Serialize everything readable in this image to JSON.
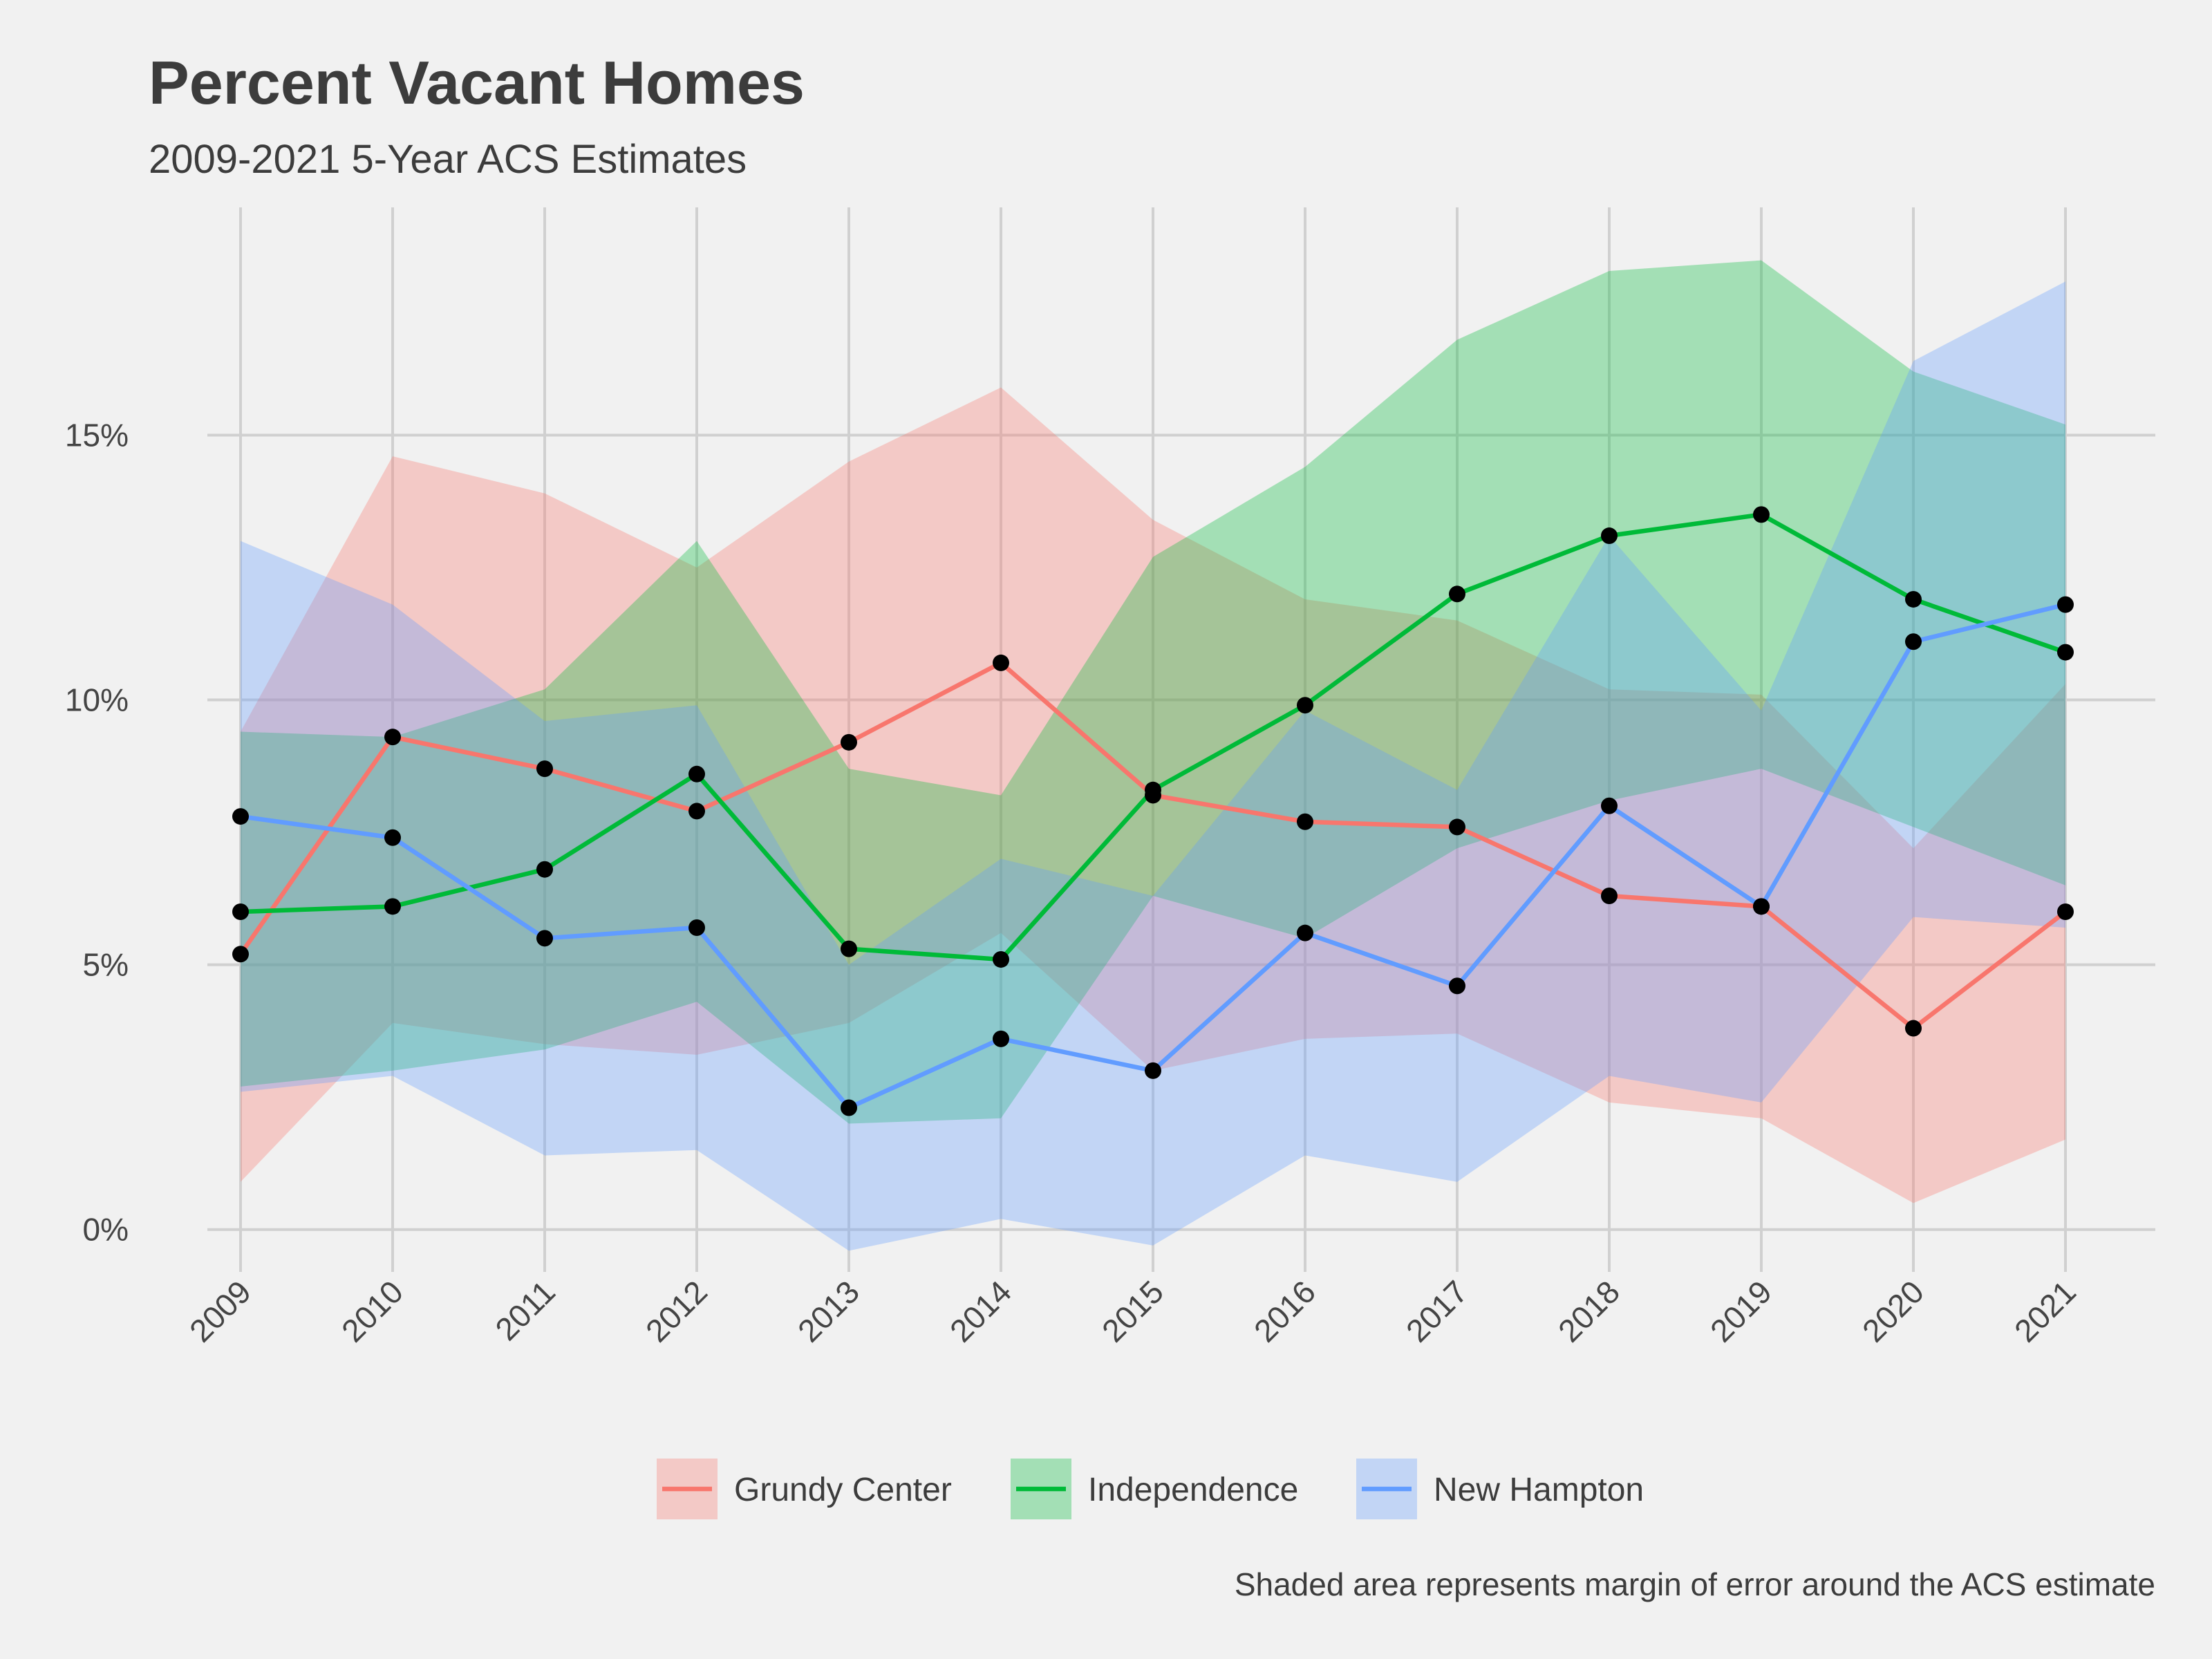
{
  "chart_data": {
    "type": "line",
    "title": "Percent Vacant Homes",
    "subtitle": "2009-2021 5-Year ACS Estimates",
    "caption": "Shaded area represents margin of error around the ACS estimate",
    "xlabel": "",
    "ylabel": "",
    "x": [
      2009,
      2010,
      2011,
      2012,
      2013,
      2014,
      2015,
      2016,
      2017,
      2018,
      2019,
      2020,
      2021
    ],
    "x_tick_labels": [
      "2009",
      "2010",
      "2011",
      "2012",
      "2013",
      "2014",
      "2015",
      "2016",
      "2017",
      "2018",
      "2019",
      "2020",
      "2021"
    ],
    "y_ticks": [
      0,
      5,
      10,
      15
    ],
    "y_tick_labels": [
      "0%",
      "5%",
      "10%",
      "15%"
    ],
    "ylim": [
      -0.8,
      19.3
    ],
    "grid": true,
    "legend_position": "bottom",
    "series": [
      {
        "name": "Grundy Center",
        "color": "#f8766d",
        "fill": "#f8766d",
        "values": [
          5.2,
          9.3,
          8.7,
          7.9,
          9.2,
          10.7,
          8.2,
          7.7,
          7.6,
          6.3,
          6.1,
          3.8,
          6.0
        ],
        "lower": [
          0.9,
          3.9,
          3.5,
          3.3,
          3.9,
          5.6,
          3.0,
          3.6,
          3.7,
          2.4,
          2.1,
          0.5,
          1.7
        ],
        "upper": [
          9.4,
          14.6,
          13.9,
          12.5,
          14.5,
          15.9,
          13.4,
          11.9,
          11.5,
          10.2,
          10.1,
          7.2,
          10.3
        ]
      },
      {
        "name": "Independence",
        "color": "#00ba38",
        "fill": "#00ba38",
        "values": [
          6.0,
          6.1,
          6.8,
          8.6,
          5.3,
          5.1,
          8.3,
          9.9,
          12.0,
          13.1,
          13.5,
          11.9,
          10.9
        ],
        "lower": [
          2.7,
          3.0,
          3.4,
          4.3,
          2.0,
          2.1,
          6.3,
          5.5,
          7.2,
          8.1,
          8.7,
          7.6,
          6.5
        ],
        "upper": [
          9.4,
          9.3,
          10.2,
          13.0,
          8.7,
          8.2,
          12.7,
          14.4,
          16.8,
          18.1,
          18.3,
          16.2,
          15.2
        ]
      },
      {
        "name": "New Hampton",
        "color": "#619cff",
        "fill": "#619cff",
        "values": [
          7.8,
          7.4,
          5.5,
          5.7,
          2.3,
          3.6,
          3.0,
          5.6,
          4.6,
          8.0,
          6.1,
          11.1,
          11.8
        ],
        "lower": [
          2.6,
          2.9,
          1.4,
          1.5,
          -0.4,
          0.2,
          -0.3,
          1.4,
          0.9,
          2.9,
          2.4,
          5.9,
          5.7
        ],
        "upper": [
          13.0,
          11.8,
          9.6,
          9.9,
          5.0,
          7.0,
          6.3,
          9.8,
          8.3,
          13.1,
          9.8,
          16.4,
          17.9
        ]
      }
    ]
  }
}
